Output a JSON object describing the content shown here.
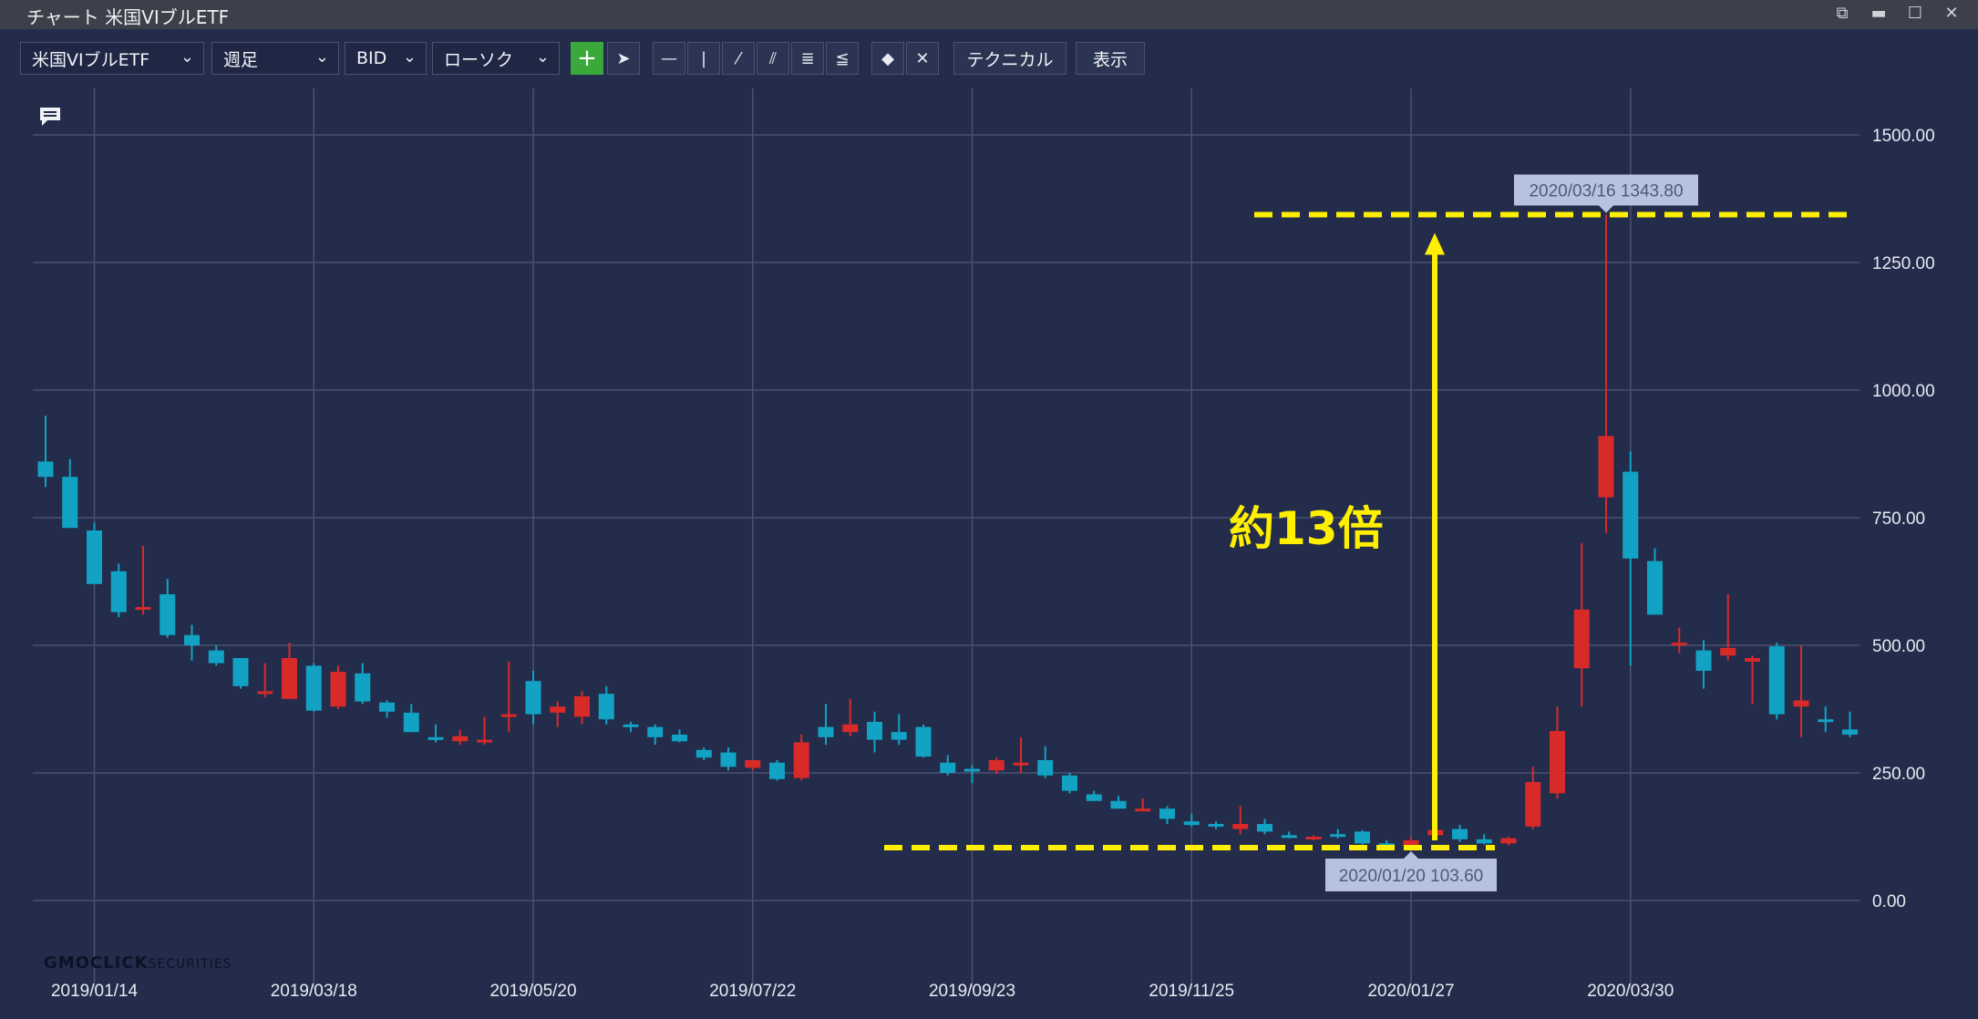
{
  "window": {
    "title": "チャート 米国VIブルETF"
  },
  "toolbar": {
    "instrument": "米国VIブルETF",
    "timeframe": "週足",
    "price_type": "BID",
    "chart_style": "ローソク",
    "technical_label": "テクニカル",
    "display_label": "表示"
  },
  "logo": {
    "text": "GMOCLICK",
    "sub": "SECURITIES"
  },
  "colors": {
    "bg": "#232c4b",
    "up": "#d92a2a",
    "down": "#12a3c4",
    "annotation": "#fff000"
  },
  "chart_data": {
    "type": "candlestick",
    "y_range": [
      0,
      1500
    ],
    "y_ticks": [
      "1500.00",
      "1250.00",
      "1000.00",
      "750.00",
      "500.00",
      "250.00",
      "0.00"
    ],
    "x_tick_labels": [
      "2019/01/14",
      "2019/03/18",
      "2019/05/20",
      "2019/07/22",
      "2019/09/23",
      "2019/11/25",
      "2020/01/27",
      "2020/03/30"
    ],
    "grid": true,
    "candles": [
      [
        860,
        950,
        810,
        830
      ],
      [
        830,
        865,
        730,
        730
      ],
      [
        725,
        740,
        620,
        620
      ],
      [
        645,
        660,
        555,
        565
      ],
      [
        570,
        695,
        560,
        575
      ],
      [
        600,
        630,
        515,
        520
      ],
      [
        520,
        540,
        470,
        500
      ],
      [
        490,
        500,
        460,
        465
      ],
      [
        475,
        475,
        415,
        420
      ],
      [
        405,
        465,
        398,
        410
      ],
      [
        395,
        505,
        395,
        475
      ],
      [
        460,
        465,
        370,
        372
      ],
      [
        380,
        460,
        375,
        448
      ],
      [
        445,
        465,
        385,
        390
      ],
      [
        388,
        392,
        358,
        370
      ],
      [
        368,
        385,
        330,
        330
      ],
      [
        320,
        345,
        310,
        315
      ],
      [
        312,
        335,
        305,
        322
      ],
      [
        312,
        360,
        305,
        315
      ],
      [
        360,
        468,
        330,
        365
      ],
      [
        430,
        450,
        345,
        365
      ],
      [
        368,
        390,
        340,
        380
      ],
      [
        360,
        410,
        345,
        400
      ],
      [
        405,
        420,
        345,
        355
      ],
      [
        345,
        350,
        330,
        340
      ],
      [
        340,
        345,
        305,
        320
      ],
      [
        325,
        335,
        310,
        312
      ],
      [
        295,
        300,
        275,
        280
      ],
      [
        290,
        300,
        255,
        262
      ],
      [
        260,
        275,
        255,
        275
      ],
      [
        270,
        275,
        235,
        238
      ],
      [
        240,
        325,
        235,
        310
      ],
      [
        340,
        385,
        305,
        320
      ],
      [
        330,
        395,
        322,
        345
      ],
      [
        350,
        370,
        290,
        315
      ],
      [
        330,
        365,
        305,
        315
      ],
      [
        340,
        345,
        280,
        282
      ],
      [
        270,
        285,
        245,
        250
      ],
      [
        258,
        265,
        230,
        255
      ],
      [
        255,
        280,
        248,
        275
      ],
      [
        265,
        320,
        250,
        270
      ],
      [
        275,
        302,
        240,
        245
      ],
      [
        245,
        250,
        210,
        215
      ],
      [
        208,
        215,
        195,
        195
      ],
      [
        195,
        205,
        180,
        180
      ],
      [
        175,
        200,
        175,
        180
      ],
      [
        180,
        185,
        150,
        160
      ],
      [
        155,
        170,
        145,
        148
      ],
      [
        150,
        155,
        140,
        145
      ],
      [
        140,
        185,
        130,
        150
      ],
      [
        150,
        160,
        130,
        135
      ],
      [
        128,
        135,
        122,
        125
      ],
      [
        125,
        128,
        118,
        125
      ],
      [
        130,
        140,
        122,
        128
      ],
      [
        135,
        138,
        110,
        112
      ],
      [
        112,
        118,
        104,
        110
      ],
      [
        108,
        125,
        103.6,
        118
      ],
      [
        128,
        142,
        125,
        138
      ],
      [
        140,
        148,
        115,
        120
      ],
      [
        120,
        130,
        110,
        112
      ],
      [
        112,
        125,
        108,
        122
      ],
      [
        145,
        262,
        140,
        232
      ],
      [
        210,
        380,
        200,
        332
      ],
      [
        455,
        700,
        380,
        570
      ],
      [
        790,
        1343.8,
        720,
        910
      ],
      [
        840,
        880,
        460,
        670
      ],
      [
        665,
        690,
        560,
        560
      ],
      [
        500,
        535,
        485,
        505
      ],
      [
        490,
        510,
        415,
        450
      ],
      [
        480,
        600,
        470,
        495
      ],
      [
        468,
        480,
        385,
        475
      ],
      [
        498,
        505,
        355,
        365
      ],
      [
        380,
        500,
        320,
        392
      ],
      [
        355,
        380,
        330,
        350
      ],
      [
        335,
        370,
        320,
        325
      ]
    ],
    "annotations": {
      "high_label": "2020/03/16 1343.80",
      "low_label": "2020/01/20 103.60",
      "ratio_label": "約13倍",
      "high_value": 1343.8,
      "low_value": 103.6
    }
  }
}
